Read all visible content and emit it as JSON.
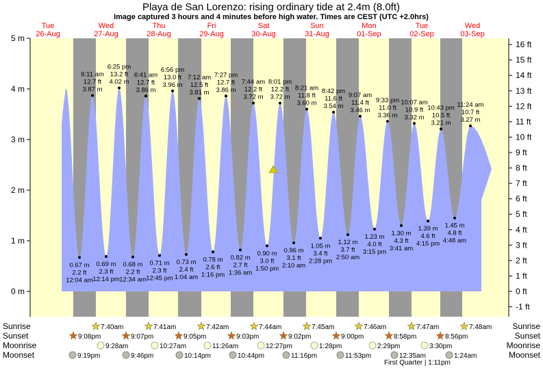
{
  "chart_data": {
    "type": "area",
    "title": "Playa de San Lorenzo: rising  ordinary tide at 2.4m (8.0ft)",
    "subtitle": "Image captured 3 hours and 4 minutes before high water. Times are CEST (UTC +2.0hrs)",
    "y_left_ticks": [
      "0 m",
      "1 m",
      "2 m",
      "3 m",
      "4 m",
      "5 m"
    ],
    "y_right_ticks": [
      "-1 ft",
      "0 ft",
      "1 ft",
      "2 ft",
      "3 ft",
      "4 ft",
      "5 ft",
      "6 ft",
      "7 ft",
      "8 ft",
      "9 ft",
      "10 ft",
      "11 ft",
      "12 ft",
      "13 ft",
      "14 ft",
      "15 ft",
      "16 ft"
    ],
    "ylim_m": [
      -0.5,
      5.0
    ],
    "days": [
      {
        "name": "Tue",
        "date": "26-Aug"
      },
      {
        "name": "Wed",
        "date": "27-Aug"
      },
      {
        "name": "Thu",
        "date": "28-Aug"
      },
      {
        "name": "Fri",
        "date": "29-Aug"
      },
      {
        "name": "Sat",
        "date": "30-Aug"
      },
      {
        "name": "Sun",
        "date": "31-Aug"
      },
      {
        "name": "Mon",
        "date": "01-Sep"
      },
      {
        "name": "Tue",
        "date": "02-Sep"
      },
      {
        "name": "Wed",
        "date": "03-Sep"
      }
    ],
    "highs": [
      {
        "time": "6:11 am",
        "ft": "12.7 ft",
        "m": "3.87 m",
        "value": 3.87
      },
      {
        "time": "6:25 pm",
        "ft": "13.2 ft",
        "m": "4.02 m",
        "value": 4.02
      },
      {
        "time": "6:41 am",
        "ft": "12.7 ft",
        "m": "3.86 m",
        "value": 3.86
      },
      {
        "time": "6:56 pm",
        "ft": "13.0 ft",
        "m": "3.96 m",
        "value": 3.96
      },
      {
        "time": "7:12 am",
        "ft": "12.5 ft",
        "m": "3.81 m",
        "value": 3.81
      },
      {
        "time": "7:27 pm",
        "ft": "12.7 ft",
        "m": "3.86 m",
        "value": 3.86
      },
      {
        "time": "7:44 am",
        "ft": "12.2 ft",
        "m": "3.72 m",
        "value": 3.72
      },
      {
        "time": "8:01 pm",
        "ft": "12.2 ft",
        "m": "3.72 m",
        "value": 3.72
      },
      {
        "time": "8:21 am",
        "ft": "11.8 ft",
        "m": "3.60 m",
        "value": 3.6
      },
      {
        "time": "8:42 pm",
        "ft": "11.6 ft",
        "m": "3.54 m",
        "value": 3.54
      },
      {
        "time": "9:07 am",
        "ft": "11.4 ft",
        "m": "3.46 m",
        "value": 3.46
      },
      {
        "time": "9:33 pm",
        "ft": "11.0 ft",
        "m": "3.36 m",
        "value": 3.36
      },
      {
        "time": "10:07 am",
        "ft": "10.9 ft",
        "m": "3.32 m",
        "value": 3.32
      },
      {
        "time": "10:43 pm",
        "ft": "10.5 ft",
        "m": "3.21 m",
        "value": 3.21
      },
      {
        "time": "11:24 am",
        "ft": "10.7 ft",
        "m": "3.27 m",
        "value": 3.27
      }
    ],
    "lows": [
      {
        "m": "0.67 m",
        "ft": "2.2 ft",
        "time": "12:04 am",
        "value": 0.67
      },
      {
        "m": "0.69 m",
        "ft": "2.3 ft",
        "time": "12:14 pm",
        "value": 0.69
      },
      {
        "m": "0.68 m",
        "ft": "2.2 ft",
        "time": "12:34 am",
        "value": 0.68
      },
      {
        "m": "0.71 m",
        "ft": "2.3 ft",
        "time": "12:45 pm",
        "value": 0.71
      },
      {
        "m": "0.73 m",
        "ft": "2.4 ft",
        "time": "1:04 am",
        "value": 0.73
      },
      {
        "m": "0.78 m",
        "ft": "2.6 ft",
        "time": "1:16 pm",
        "value": 0.78
      },
      {
        "m": "0.82 m",
        "ft": "2.7 ft",
        "time": "1:36 am",
        "value": 0.82
      },
      {
        "m": "0.90 m",
        "ft": "3.0 ft",
        "time": "1:50 pm",
        "value": 0.9
      },
      {
        "m": "0.96 m",
        "ft": "3.1 ft",
        "time": "2:10 am",
        "value": 0.96
      },
      {
        "m": "1.05 m",
        "ft": "3.4 ft",
        "time": "2:28 pm",
        "value": 1.05
      },
      {
        "m": "1.12 m",
        "ft": "3.7 ft",
        "time": "2:50 am",
        "value": 1.12
      },
      {
        "m": "1.23 m",
        "ft": "4.0 ft",
        "time": "3:15 pm",
        "value": 1.23
      },
      {
        "m": "1.30 m",
        "ft": "4.3 ft",
        "time": "3:41 am",
        "value": 1.3
      },
      {
        "m": "1.39 m",
        "ft": "4.6 ft",
        "time": "4:15 pm",
        "value": 1.39
      },
      {
        "m": "1.45 m",
        "ft": "4.8 ft",
        "time": "4:48 am",
        "value": 1.45
      }
    ],
    "current_level_m": 2.4,
    "astro_labels": {
      "sunrise": "Sunrise",
      "sunset": "Sunset",
      "moonrise": "Moonrise",
      "moonset": "Moonset"
    },
    "sunrise": [
      "7:40am",
      "7:41am",
      "7:42am",
      "7:44am",
      "7:45am",
      "7:46am",
      "7:47am",
      "7:48am"
    ],
    "sunset": [
      "9:08pm",
      "9:07pm",
      "9:05pm",
      "9:03pm",
      "9:02pm",
      "9:00pm",
      "8:58pm",
      "8:56pm"
    ],
    "moonrise": [
      "9:28am",
      "10:27am",
      "11:26am",
      "12:27pm",
      "1:28pm",
      "2:29pm",
      "3:30pm"
    ],
    "moonset": [
      "9:19pm",
      "9:46pm",
      "10:14pm",
      "10:44pm",
      "11:16pm",
      "11:53pm",
      "12:35am",
      "1:24am"
    ],
    "moon_phase": "First Quarter | 1:11pm",
    "colors": {
      "day": "#ffffcc",
      "night": "#999999",
      "water": "#9faaff",
      "date_red": "#ff0000",
      "sun_star": "#ddcc44",
      "sunset_star": "#cc6633",
      "moonrise_circle": "#ffffcc",
      "moonset_circle": "#bbbbaa",
      "marker": "#ddcc00"
    }
  }
}
